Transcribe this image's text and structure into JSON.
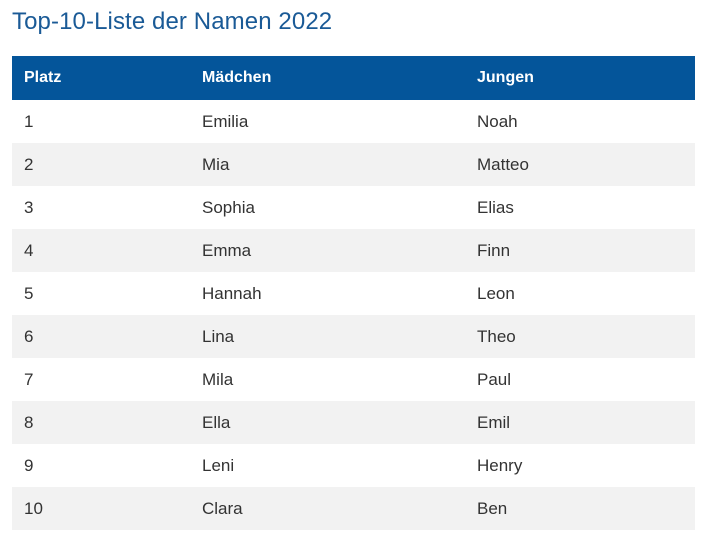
{
  "title": "Top-10-Liste der Namen 2022",
  "table": {
    "headers": [
      "Platz",
      "Mädchen",
      "Jungen"
    ],
    "rows": [
      [
        "1",
        "Emilia",
        "Noah"
      ],
      [
        "2",
        "Mia",
        "Matteo"
      ],
      [
        "3",
        "Sophia",
        "Elias"
      ],
      [
        "4",
        "Emma",
        "Finn"
      ],
      [
        "5",
        "Hannah",
        "Leon"
      ],
      [
        "6",
        "Lina",
        "Theo"
      ],
      [
        "7",
        "Mila",
        "Paul"
      ],
      [
        "8",
        "Ella",
        "Emil"
      ],
      [
        "9",
        "Leni",
        "Henry"
      ],
      [
        "10",
        "Clara",
        "Ben"
      ]
    ]
  },
  "colors": {
    "title": "#1a5a96",
    "header_bg": "#04559a",
    "header_text": "#ffffff",
    "stripe": "#f2f2f2"
  }
}
